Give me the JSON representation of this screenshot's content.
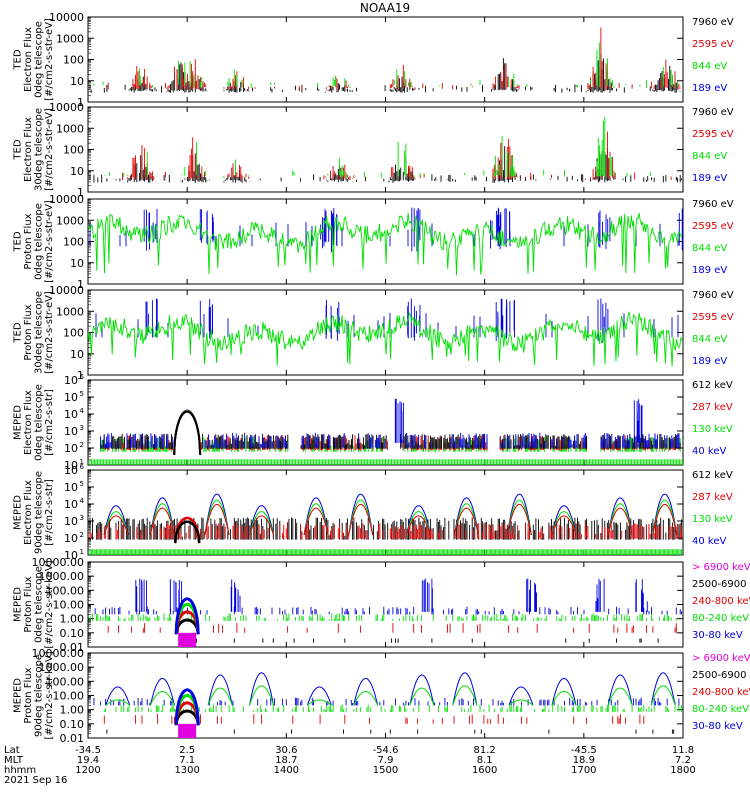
{
  "title": "NOAA19",
  "colors": {
    "black": "#000000",
    "red": "#e00000",
    "green": "#00e000",
    "blue": "#0000e0",
    "magenta": "#e000e0"
  },
  "chart_data": [
    {
      "type": "line",
      "panel": "ted-electron-0deg",
      "ylabel": [
        "TED",
        "Electron Flux",
        "0deg telescope",
        "[#/cm2-s-str-eV]"
      ],
      "yscale": "log",
      "ylim": [
        1,
        10000
      ],
      "ytick_labels": [
        "10000",
        "1000",
        "100",
        "10",
        "1"
      ],
      "legend": [
        {
          "text": "7960 eV",
          "color": "black"
        },
        {
          "text": "2595 eV",
          "color": "red"
        },
        {
          "text": "844 eV",
          "color": "green"
        },
        {
          "text": "189 eV",
          "color": "blue"
        }
      ],
      "bursts": [
        {
          "x": 1232,
          "amp": 1,
          "series": [
            "black",
            "red"
          ]
        },
        {
          "x": 1256,
          "amp": 1.4,
          "series": [
            "black",
            "red",
            "green"
          ]
        },
        {
          "x": 1304,
          "amp": 1.1,
          "series": [
            "black",
            "red"
          ]
        },
        {
          "x": 1330,
          "amp": 0.7,
          "series": [
            "black",
            "red"
          ]
        },
        {
          "x": 1432,
          "amp": 0.7,
          "series": [
            "black",
            "red"
          ]
        },
        {
          "x": 1510,
          "amp": 0.9,
          "series": [
            "black",
            "red"
          ]
        },
        {
          "x": 1612,
          "amp": 1.7,
          "series": [
            "black",
            "red",
            "green"
          ]
        },
        {
          "x": 1710,
          "amp": 2.0,
          "series": [
            "black",
            "red",
            "green"
          ]
        },
        {
          "x": 1750,
          "amp": 1.5,
          "series": [
            "black",
            "red",
            "green"
          ]
        },
        {
          "x": 1782,
          "amp": 2.2,
          "series": [
            "black",
            "red",
            "green"
          ]
        }
      ]
    },
    {
      "type": "line",
      "panel": "ted-electron-30deg",
      "ylabel": [
        "TED",
        "Electron Flux",
        "30deg telescope",
        "[#/cm2-s-str-eV]"
      ],
      "yscale": "log",
      "ylim": [
        1,
        10000
      ],
      "ytick_labels": [
        "10000",
        "1000",
        "100",
        "10",
        "1"
      ],
      "legend": [
        {
          "text": "7960 eV",
          "color": "black"
        },
        {
          "text": "2595 eV",
          "color": "red"
        },
        {
          "text": "844 eV",
          "color": "green"
        },
        {
          "text": "189 eV",
          "color": "blue"
        }
      ],
      "bursts": [
        {
          "x": 1232,
          "amp": 1.5,
          "series": [
            "black",
            "red"
          ]
        },
        {
          "x": 1304,
          "amp": 1.4,
          "series": [
            "black",
            "red",
            "green"
          ]
        },
        {
          "x": 1330,
          "amp": 0.7,
          "series": [
            "black",
            "red"
          ]
        },
        {
          "x": 1432,
          "amp": 0.8,
          "series": [
            "black",
            "red"
          ]
        },
        {
          "x": 1510,
          "amp": 1.7,
          "series": [
            "black",
            "red",
            "green"
          ]
        },
        {
          "x": 1612,
          "amp": 1.8,
          "series": [
            "black",
            "red",
            "green"
          ]
        },
        {
          "x": 1712,
          "amp": 2.1,
          "series": [
            "black",
            "red",
            "green"
          ]
        },
        {
          "x": 1782,
          "amp": 1.8,
          "series": [
            "black",
            "red",
            "green"
          ]
        }
      ]
    },
    {
      "type": "line",
      "panel": "ted-proton-0deg",
      "ylabel": [
        "TED",
        "Proton Flux",
        "0deg telescope",
        "[#/cm2-s-str-eV]"
      ],
      "yscale": "log",
      "ylim": [
        1,
        10000
      ],
      "ytick_labels": [
        "10000",
        "1000",
        "100",
        "10",
        "1"
      ],
      "legend": [
        {
          "text": "7960 eV",
          "color": "black"
        },
        {
          "text": "2595 eV",
          "color": "red"
        },
        {
          "text": "844 eV",
          "color": "green"
        },
        {
          "text": "189 eV",
          "color": "blue"
        }
      ],
      "spikes": [
        1238,
        1312,
        1388,
        1425,
        1517,
        1606,
        1612,
        1712,
        1762
      ],
      "base_level": 2.4
    },
    {
      "type": "line",
      "panel": "ted-proton-30deg",
      "ylabel": [
        "TED",
        "Proton Flux",
        "30deg telescope",
        "[#/cm2-s-str-eV]"
      ],
      "yscale": "log",
      "ylim": [
        1,
        10000
      ],
      "ytick_labels": [
        "10000",
        "1000",
        "100",
        "10",
        "1"
      ],
      "legend": [
        {
          "text": "7960 eV",
          "color": "black"
        },
        {
          "text": "2595 eV",
          "color": "red"
        },
        {
          "text": "844 eV",
          "color": "green"
        },
        {
          "text": "189 eV",
          "color": "blue"
        }
      ],
      "spikes": [
        1238,
        1312,
        1388,
        1517,
        1575,
        1610,
        1712,
        1765
      ],
      "base_level": 2.0
    },
    {
      "type": "line",
      "panel": "meped-electron-0deg",
      "ylabel": [
        "MEPED",
        "Electron Flux",
        "0deg telescope",
        "[#/cm2-s-str]"
      ],
      "yscale": "log",
      "ylim": [
        10,
        1000000
      ],
      "ytick_labels": [
        "10",
        "10",
        "10",
        "10",
        "10",
        "10"
      ],
      "ytick_exponents": [
        "6",
        "5",
        "4",
        "3",
        "2",
        "1"
      ],
      "legend": [
        {
          "text": "612 keV",
          "color": "black"
        },
        {
          "text": "287 keV",
          "color": "red"
        },
        {
          "text": "130 keV",
          "color": "green"
        },
        {
          "text": "40 keV",
          "color": "blue"
        }
      ],
      "dome": {
        "x": 1300,
        "peak": 16000
      },
      "spikes": [
        1508,
        1733,
        1808
      ]
    },
    {
      "type": "line",
      "panel": "meped-electron-90deg",
      "ylabel": [
        "MEPED",
        "Electron Flux",
        "90deg telescope",
        "[#/cm2-s-str]"
      ],
      "yscale": "log",
      "ylim": [
        10,
        1000000
      ],
      "ytick_labels": [
        "10",
        "10",
        "10",
        "10",
        "10",
        "10"
      ],
      "ytick_exponents": [
        "6",
        "5",
        "4",
        "3",
        "2",
        "1"
      ],
      "legend": [
        {
          "text": "612 keV",
          "color": "black"
        },
        {
          "text": "287 keV",
          "color": "red"
        },
        {
          "text": "130 keV",
          "color": "green"
        },
        {
          "text": "40 keV",
          "color": "blue"
        }
      ],
      "humps": [
        1217,
        1245,
        1318,
        1345,
        1418,
        1445,
        1520,
        1549,
        1621,
        1648,
        1722,
        1749,
        1822,
        1849
      ],
      "dome": {
        "x": 1300,
        "peak": 1500
      }
    },
    {
      "type": "line",
      "panel": "meped-proton-0deg",
      "ylabel": [
        "MEPED",
        "Proton Flux",
        "0deg telescope",
        "[#/cm2-s-str-keV]"
      ],
      "yscale": "log",
      "ylim": [
        0.01,
        10000
      ],
      "ytick_labels": [
        "10000.00",
        "1000.00",
        "100.00",
        "10.00",
        "1.00",
        "0.10",
        "0.01"
      ],
      "legend": [
        {
          "text": "> 6900 keV",
          "color": "magenta"
        },
        {
          "text": "2500-6900",
          "color": "black"
        },
        {
          "text": "240-800 keV",
          "color": "red"
        },
        {
          "text": "80-240 keV",
          "color": "green"
        },
        {
          "text": "30-80 keV",
          "color": "blue"
        }
      ],
      "dome": {
        "x": 1300
      },
      "spikes": [
        1232,
        1253,
        1330,
        1525,
        1628,
        1710,
        1735,
        1808
      ]
    },
    {
      "type": "line",
      "panel": "meped-proton-90deg",
      "ylabel": [
        "MEPED",
        "Proton Flux",
        "90deg telescope",
        "[#/cm2-s-str-keV]"
      ],
      "yscale": "log",
      "ylim": [
        0.01,
        10000
      ],
      "ytick_labels": [
        "10000.00",
        "1000.00",
        "100.00",
        "10.00",
        "1.00",
        "0.10",
        "0.01"
      ],
      "legend": [
        {
          "text": "> 6900 keV",
          "color": "magenta"
        },
        {
          "text": "2500-6900",
          "color": "black"
        },
        {
          "text": "240-800 keV",
          "color": "red"
        },
        {
          "text": "80-240 keV",
          "color": "green"
        },
        {
          "text": "30-80 keV",
          "color": "blue"
        }
      ],
      "dome": {
        "x": 1300
      },
      "humps": [
        1218,
        1245,
        1320,
        1345,
        1420,
        1448,
        1522,
        1548,
        1622,
        1648,
        1722,
        1748,
        1822,
        1848
      ]
    }
  ],
  "xaxis": {
    "row_labels": [
      "Lat",
      "MLT",
      "hhmm"
    ],
    "ticks": [
      {
        "lat": "-34.5",
        "mlt": "19.4",
        "hhmm": "1200"
      },
      {
        "lat": "2.5",
        "mlt": "7.1",
        "hhmm": "1300"
      },
      {
        "lat": "30.6",
        "mlt": "18.7",
        "hhmm": "1400"
      },
      {
        "lat": "-54.6",
        "mlt": "7.9",
        "hhmm": "1500"
      },
      {
        "lat": "81.2",
        "mlt": "8.1",
        "hhmm": "1600"
      },
      {
        "lat": "-45.5",
        "mlt": "18.9",
        "hhmm": "1700"
      },
      {
        "lat": "11.8",
        "mlt": "7.2",
        "hhmm": "1800"
      }
    ],
    "date": "2021 Sep 16"
  }
}
